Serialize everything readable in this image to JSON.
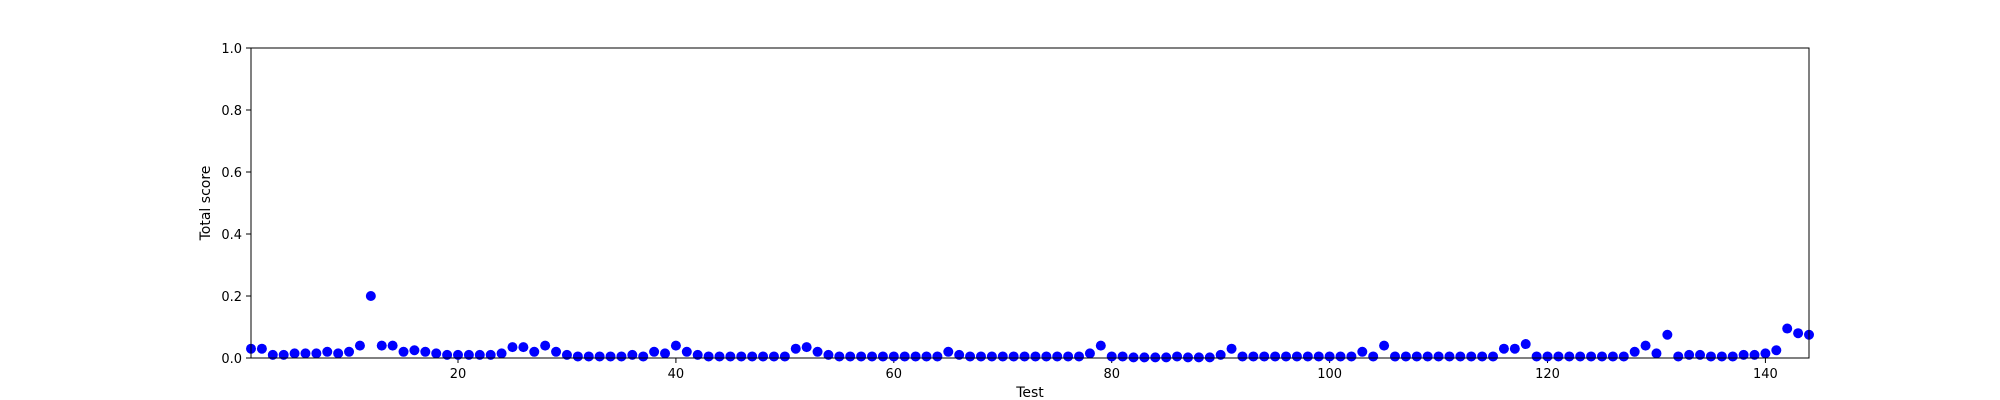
{
  "chart_data": {
    "type": "scatter",
    "title": "",
    "xlabel": "Test",
    "ylabel": "Total score",
    "xlim": [
      1,
      144
    ],
    "ylim": [
      0.0,
      1.0
    ],
    "xticks": [
      20,
      40,
      60,
      80,
      100,
      120,
      140
    ],
    "yticks": [
      0.0,
      0.2,
      0.4,
      0.6,
      0.8,
      1.0
    ],
    "xtick_labels": [
      "20",
      "40",
      "60",
      "80",
      "100",
      "120",
      "140"
    ],
    "ytick_labels": [
      "0.0",
      "0.2",
      "0.4",
      "0.6",
      "0.8",
      "1.0"
    ],
    "grid": false,
    "marker_color": "#0000ff",
    "series": [
      {
        "x": [
          1,
          2,
          3,
          4,
          5,
          6,
          7,
          8,
          9,
          10,
          11,
          12,
          13,
          14,
          15,
          16,
          17,
          18,
          19,
          20,
          21,
          22,
          23,
          24,
          25,
          26,
          27,
          28,
          29,
          30,
          31,
          32,
          33,
          34,
          35,
          36,
          37,
          38,
          39,
          40,
          41,
          42,
          43,
          44,
          45,
          46,
          47,
          48,
          49,
          50,
          51,
          52,
          53,
          54,
          55,
          56,
          57,
          58,
          59,
          60,
          61,
          62,
          63,
          64,
          65,
          66,
          67,
          68,
          69,
          70,
          71,
          72,
          73,
          74,
          75,
          76,
          77,
          78,
          79,
          80,
          81,
          82,
          83,
          84,
          85,
          86,
          87,
          88,
          89,
          90,
          91,
          92,
          93,
          94,
          95,
          96,
          97,
          98,
          99,
          100,
          101,
          102,
          103,
          104,
          105,
          106,
          107,
          108,
          109,
          110,
          111,
          112,
          113,
          114,
          115,
          116,
          117,
          118,
          119,
          120,
          121,
          122,
          123,
          124,
          125,
          126,
          127,
          128,
          129,
          130,
          131,
          132,
          133,
          134,
          135,
          136,
          137,
          138,
          139,
          140,
          141,
          142,
          143,
          144
        ],
        "y": [
          0.03,
          0.03,
          0.01,
          0.01,
          0.015,
          0.015,
          0.015,
          0.02,
          0.015,
          0.02,
          0.04,
          0.2,
          0.04,
          0.04,
          0.02,
          0.025,
          0.02,
          0.015,
          0.01,
          0.01,
          0.01,
          0.01,
          0.01,
          0.015,
          0.035,
          0.035,
          0.02,
          0.04,
          0.02,
          0.01,
          0.005,
          0.005,
          0.005,
          0.005,
          0.005,
          0.01,
          0.005,
          0.02,
          0.015,
          0.04,
          0.02,
          0.01,
          0.005,
          0.005,
          0.005,
          0.005,
          0.005,
          0.005,
          0.005,
          0.005,
          0.03,
          0.035,
          0.02,
          0.01,
          0.005,
          0.005,
          0.005,
          0.005,
          0.005,
          0.005,
          0.005,
          0.005,
          0.005,
          0.005,
          0.02,
          0.01,
          0.005,
          0.005,
          0.005,
          0.005,
          0.005,
          0.005,
          0.005,
          0.005,
          0.005,
          0.005,
          0.005,
          0.015,
          0.04,
          0.005,
          0.005,
          0.002,
          0.002,
          0.002,
          0.002,
          0.005,
          0.002,
          0.002,
          0.002,
          0.01,
          0.03,
          0.005,
          0.005,
          0.005,
          0.005,
          0.005,
          0.005,
          0.005,
          0.005,
          0.005,
          0.005,
          0.005,
          0.02,
          0.005,
          0.04,
          0.005,
          0.005,
          0.005,
          0.005,
          0.005,
          0.005,
          0.005,
          0.005,
          0.005,
          0.005,
          0.03,
          0.03,
          0.045,
          0.005,
          0.005,
          0.005,
          0.005,
          0.005,
          0.005,
          0.005,
          0.005,
          0.005,
          0.02,
          0.04,
          0.015,
          0.075,
          0.005,
          0.01,
          0.01,
          0.005,
          0.005,
          0.005,
          0.01,
          0.01,
          0.015,
          0.025,
          0.095,
          0.08,
          0.075
        ]
      }
    ]
  }
}
